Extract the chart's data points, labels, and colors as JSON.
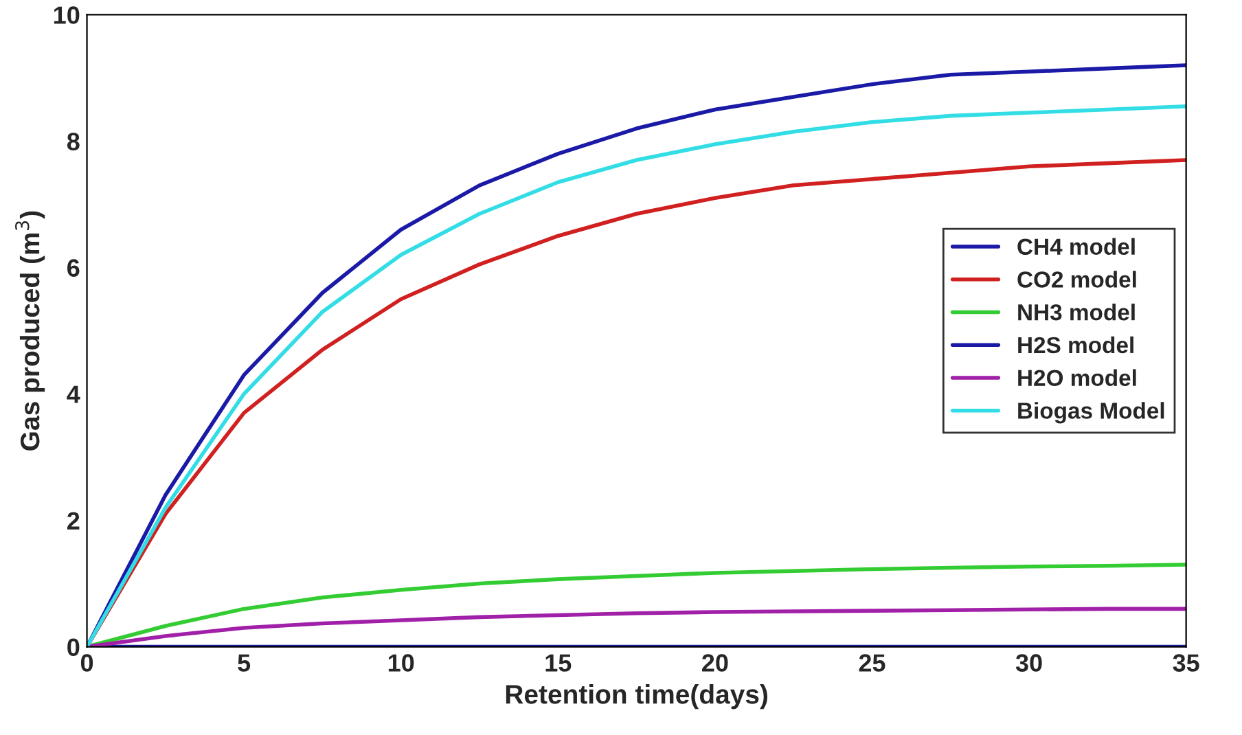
{
  "chart_data": {
    "type": "line",
    "xlabel": "Retention time(days)",
    "ylabel": "Gas produced (m$^{3}$)",
    "x": [
      0,
      2.5,
      5,
      7.5,
      10,
      12.5,
      15,
      17.5,
      20,
      22.5,
      25,
      27.5,
      30,
      32.5,
      35
    ],
    "series": [
      {
        "name": "CH4 model",
        "color": "#1a1aa6",
        "values": [
          0,
          2.4,
          4.3,
          5.6,
          6.6,
          7.3,
          7.8,
          8.2,
          8.5,
          8.7,
          8.9,
          9.05,
          9.1,
          9.15,
          9.2
        ]
      },
      {
        "name": "CO2 model",
        "color": "#d02020",
        "values": [
          0,
          2.1,
          3.7,
          4.7,
          5.5,
          6.05,
          6.5,
          6.85,
          7.1,
          7.3,
          7.4,
          7.5,
          7.6,
          7.65,
          7.7
        ]
      },
      {
        "name": "NH3 model",
        "color": "#33cc33",
        "values": [
          0,
          0.33,
          0.6,
          0.78,
          0.9,
          1.0,
          1.07,
          1.12,
          1.17,
          1.2,
          1.23,
          1.25,
          1.27,
          1.28,
          1.3
        ]
      },
      {
        "name": "H2S model",
        "color": "#1a1aa6",
        "values": [
          0,
          0,
          0,
          0,
          0,
          0,
          0,
          0,
          0,
          0,
          0,
          0,
          0,
          0,
          0
        ]
      },
      {
        "name": "H2O model",
        "color": "#a020a8",
        "values": [
          0,
          0.17,
          0.3,
          0.37,
          0.42,
          0.47,
          0.5,
          0.53,
          0.55,
          0.56,
          0.57,
          0.58,
          0.59,
          0.6,
          0.6
        ]
      },
      {
        "name": "Biogas Model",
        "color": "#33dde6",
        "values": [
          0,
          2.2,
          4.0,
          5.3,
          6.2,
          6.85,
          7.35,
          7.7,
          7.95,
          8.15,
          8.3,
          8.4,
          8.45,
          8.5,
          8.55
        ]
      }
    ],
    "xlim": [
      0,
      35
    ],
    "xticks": [
      0,
      5,
      10,
      15,
      20,
      25,
      30,
      35
    ],
    "ylim": [
      0,
      10
    ],
    "yticks": [
      0,
      2,
      4,
      6,
      8,
      10
    ],
    "grid": false,
    "legend": "right",
    "line_style": "solid",
    "marker": "none"
  }
}
